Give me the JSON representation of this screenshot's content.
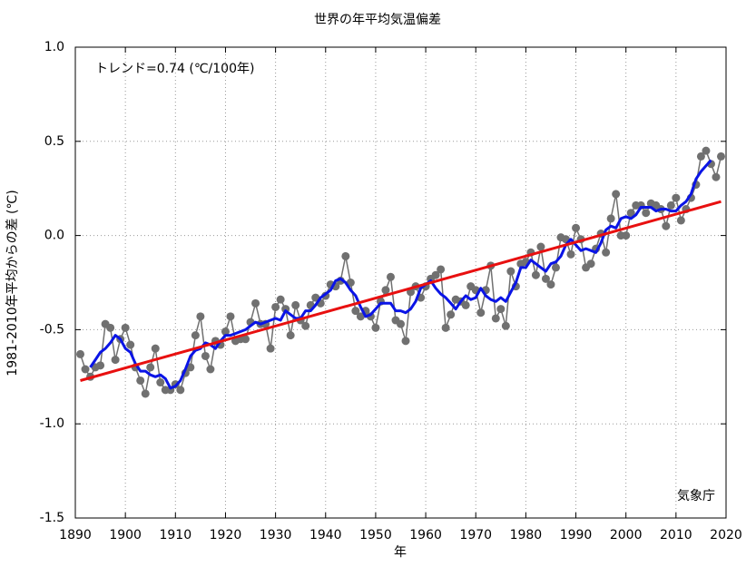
{
  "chart_data": {
    "type": "line",
    "title": "世界の年平均気温偏差",
    "annotation": "トレンド=0.74 (℃/100年)",
    "source": "気象庁",
    "xlabel": "年",
    "ylabel": "1981-2010年平均からの差 (℃)",
    "xlim": [
      1890,
      2020
    ],
    "ylim": [
      -1.5,
      1.0
    ],
    "xticks": [
      1890,
      1900,
      1910,
      1920,
      1930,
      1940,
      1950,
      1960,
      1970,
      1980,
      1990,
      2000,
      2010,
      2020
    ],
    "yticks": [
      -1.5,
      {
        "value": -1.0,
        "label": "-1.0"
      },
      -0.5,
      {
        "value": 0,
        "label": "0.0"
      },
      0.5,
      {
        "value": 1.0,
        "label": "1.0"
      }
    ],
    "grid": true,
    "x": [
      1891,
      1892,
      1893,
      1894,
      1895,
      1896,
      1897,
      1898,
      1899,
      1900,
      1901,
      1902,
      1903,
      1904,
      1905,
      1906,
      1907,
      1908,
      1909,
      1910,
      1911,
      1912,
      1913,
      1914,
      1915,
      1916,
      1917,
      1918,
      1919,
      1920,
      1921,
      1922,
      1923,
      1924,
      1925,
      1926,
      1927,
      1928,
      1929,
      1930,
      1931,
      1932,
      1933,
      1934,
      1935,
      1936,
      1937,
      1938,
      1939,
      1940,
      1941,
      1942,
      1943,
      1944,
      1945,
      1946,
      1947,
      1948,
      1949,
      1950,
      1951,
      1952,
      1953,
      1954,
      1955,
      1956,
      1957,
      1958,
      1959,
      1960,
      1961,
      1962,
      1963,
      1964,
      1965,
      1966,
      1967,
      1968,
      1969,
      1970,
      1971,
      1972,
      1973,
      1974,
      1975,
      1976,
      1977,
      1978,
      1979,
      1980,
      1981,
      1982,
      1983,
      1984,
      1985,
      1986,
      1987,
      1988,
      1989,
      1990,
      1991,
      1992,
      1993,
      1994,
      1995,
      1996,
      1997,
      1998,
      1999,
      2000,
      2001,
      2002,
      2003,
      2004,
      2005,
      2006,
      2007,
      2008,
      2009,
      2010,
      2011,
      2012,
      2013,
      2014,
      2015,
      2016,
      2017,
      2018,
      2019
    ],
    "series": [
      {
        "color": "#707070",
        "style": "points",
        "values": [
          -0.63,
          -0.71,
          -0.75,
          -0.7,
          -0.69,
          -0.47,
          -0.49,
          -0.66,
          -0.55,
          -0.49,
          -0.58,
          -0.7,
          -0.77,
          -0.84,
          -0.7,
          -0.6,
          -0.78,
          -0.82,
          -0.82,
          -0.79,
          -0.82,
          -0.73,
          -0.7,
          -0.53,
          -0.43,
          -0.64,
          -0.71,
          -0.56,
          -0.58,
          -0.51,
          -0.43,
          -0.56,
          -0.55,
          -0.55,
          -0.46,
          -0.36,
          -0.47,
          -0.47,
          -0.6,
          -0.38,
          -0.34,
          -0.39,
          -0.53,
          -0.37,
          -0.45,
          -0.48,
          -0.37,
          -0.33,
          -0.36,
          -0.32,
          -0.26,
          -0.27,
          -0.24,
          -0.11,
          -0.25,
          -0.4,
          -0.43,
          -0.4,
          -0.43,
          -0.49,
          -0.35,
          -0.29,
          -0.22,
          -0.45,
          -0.47,
          -0.56,
          -0.3,
          -0.27,
          -0.33,
          -0.27,
          -0.23,
          -0.21,
          -0.18,
          -0.49,
          -0.42,
          -0.34,
          -0.35,
          -0.37,
          -0.27,
          -0.29,
          -0.41,
          -0.29,
          -0.16,
          -0.44,
          -0.39,
          -0.48,
          -0.19,
          -0.27,
          -0.15,
          -0.14,
          -0.09,
          -0.21,
          -0.06,
          -0.23,
          -0.26,
          -0.17,
          -0.01,
          -0.02,
          -0.1,
          0.04,
          -0.02,
          -0.17,
          -0.15,
          -0.07,
          0.01,
          -0.09,
          0.09,
          0.22,
          0.0,
          0.0,
          0.12,
          0.16,
          0.16,
          0.12,
          0.17,
          0.16,
          0.14,
          0.05,
          0.16,
          0.2,
          0.08,
          0.14,
          0.2,
          0.27,
          0.42,
          0.45,
          0.38,
          0.31,
          0.42
        ]
      },
      {
        "color": "#0a14e6",
        "style": "line",
        "values": [
          null,
          null,
          -0.7,
          -0.66,
          -0.62,
          -0.6,
          -0.57,
          -0.53,
          -0.55,
          -0.6,
          -0.62,
          -0.68,
          -0.72,
          -0.72,
          -0.74,
          -0.75,
          -0.74,
          -0.76,
          -0.81,
          -0.8,
          -0.77,
          -0.71,
          -0.64,
          -0.61,
          -0.6,
          -0.57,
          -0.58,
          -0.6,
          -0.56,
          -0.53,
          -0.53,
          -0.52,
          -0.51,
          -0.5,
          -0.48,
          -0.46,
          -0.47,
          -0.46,
          -0.45,
          -0.44,
          -0.45,
          -0.4,
          -0.42,
          -0.44,
          -0.44,
          -0.4,
          -0.4,
          -0.37,
          -0.33,
          -0.31,
          -0.29,
          -0.24,
          -0.23,
          -0.25,
          -0.29,
          -0.32,
          -0.38,
          -0.43,
          -0.42,
          -0.39,
          -0.36,
          -0.36,
          -0.36,
          -0.4,
          -0.4,
          -0.41,
          -0.39,
          -0.35,
          -0.28,
          -0.26,
          -0.24,
          -0.28,
          -0.31,
          -0.33,
          -0.36,
          -0.39,
          -0.35,
          -0.32,
          -0.34,
          -0.33,
          -0.28,
          -0.32,
          -0.34,
          -0.35,
          -0.33,
          -0.35,
          -0.3,
          -0.25,
          -0.17,
          -0.17,
          -0.13,
          -0.15,
          -0.17,
          -0.19,
          -0.15,
          -0.14,
          -0.11,
          -0.05,
          -0.02,
          -0.05,
          -0.08,
          -0.07,
          -0.08,
          -0.09,
          -0.04,
          0.03,
          0.05,
          0.04,
          0.09,
          0.1,
          0.09,
          0.11,
          0.15,
          0.15,
          0.15,
          0.13,
          0.14,
          0.14,
          0.13,
          0.13,
          0.16,
          0.18,
          0.22,
          0.3,
          0.34,
          0.37,
          0.4,
          null,
          null
        ]
      }
    ],
    "trend": {
      "color": "#e81010",
      "x": [
        1891,
        2019
      ],
      "values": [
        -0.77,
        0.18
      ]
    }
  }
}
